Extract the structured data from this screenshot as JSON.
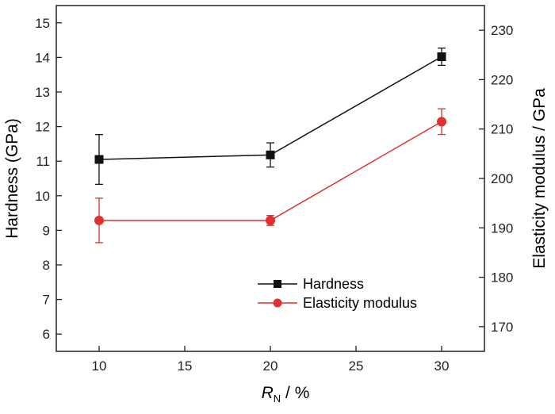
{
  "chart_data": {
    "type": "line",
    "x": [
      10,
      20,
      30
    ],
    "xlabel_main": "R",
    "xlabel_sub": "N",
    "xlabel_rest": " / %",
    "ylabel_left": "Hardness (GPa)",
    "ylabel_right": "Elasticity modulus / GPa",
    "xlim": [
      7.5,
      32.5
    ],
    "ylim_left": [
      5.5,
      15.5
    ],
    "ylim_right": [
      165,
      235
    ],
    "xticks": [
      10,
      15,
      20,
      25,
      30
    ],
    "yticks_left": [
      6,
      7,
      8,
      9,
      10,
      11,
      12,
      13,
      14,
      15
    ],
    "yticks_right": [
      170,
      180,
      190,
      200,
      210,
      220,
      230
    ],
    "grid": false,
    "legend_position": "bottom-right",
    "series": [
      {
        "name": "Hardness",
        "axis": "left",
        "marker": "square",
        "color": "#111111",
        "values": [
          11.05,
          11.18,
          14.02
        ],
        "errors": [
          0.72,
          0.35,
          0.25
        ]
      },
      {
        "name": "Elasticity modulus",
        "axis": "right",
        "marker": "circle",
        "color": "#e03030",
        "values": [
          191.5,
          191.5,
          211.5
        ],
        "errors": [
          4.5,
          1.0,
          2.6
        ]
      }
    ]
  }
}
